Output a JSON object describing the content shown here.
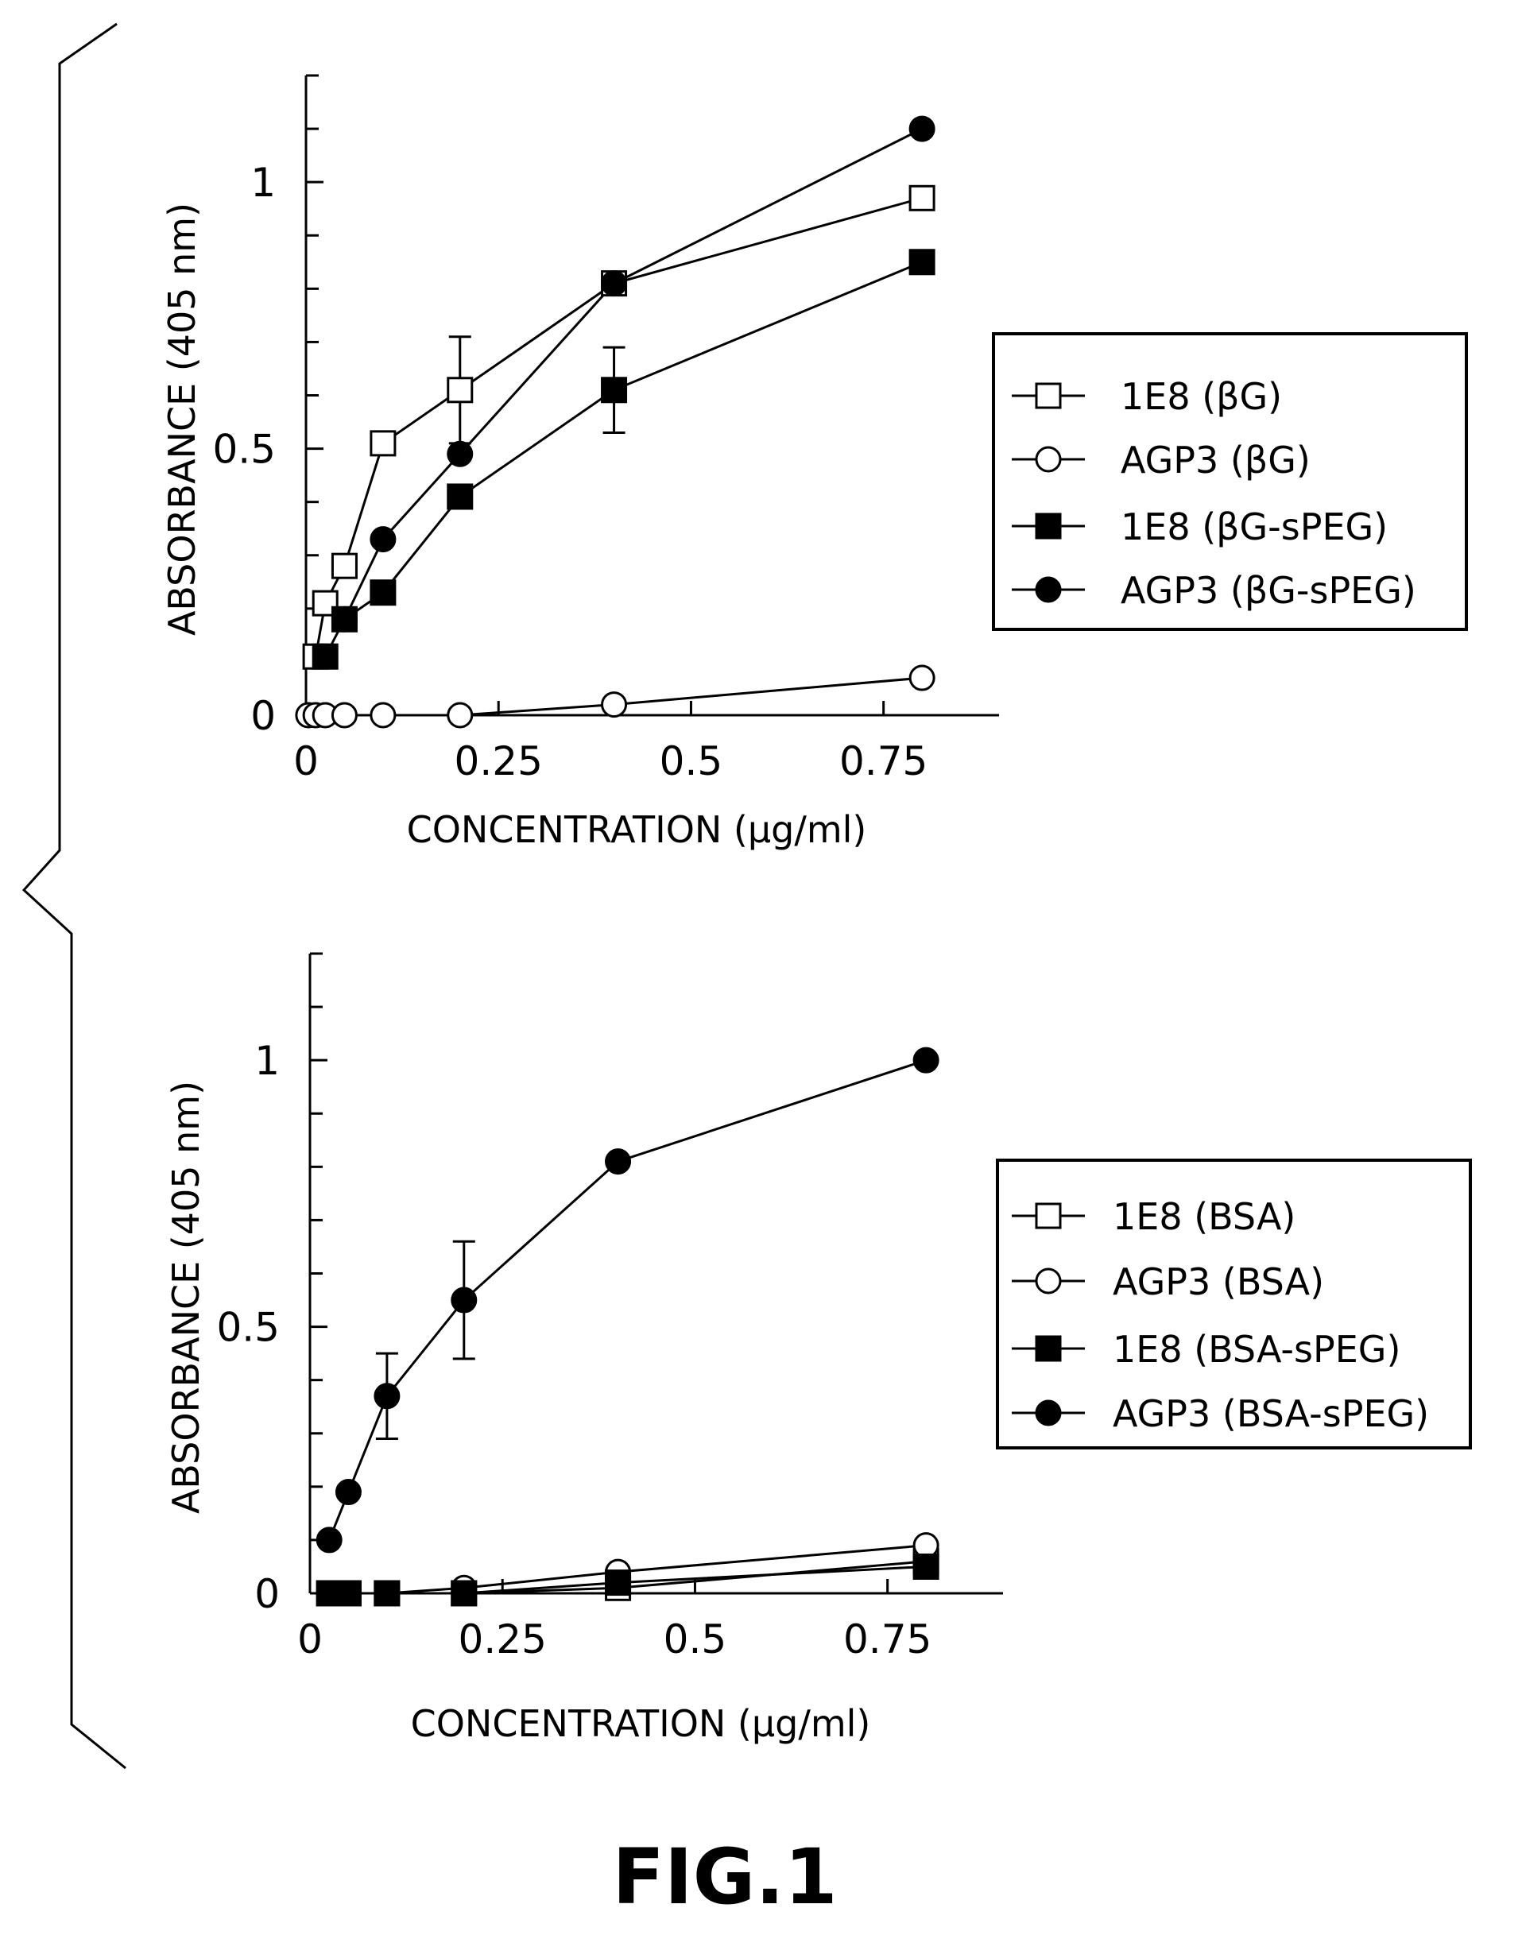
{
  "figure_label": "FIG.1",
  "chart_data": [
    {
      "type": "line",
      "xlabel": "CONCENTRATION (μg/ml)",
      "ylabel": "ABSORBANCE (405 nm)",
      "xlim": [
        0,
        0.9
      ],
      "ylim": [
        0,
        1.2
      ],
      "x_ticks": [
        0,
        0.25,
        0.5,
        0.75
      ],
      "x_tick_labels": [
        "0",
        "0.25",
        "0.5",
        "0.75"
      ],
      "y_ticks": [
        0,
        0.5,
        1
      ],
      "y_tick_labels": [
        "0",
        "0.5",
        "1"
      ],
      "legend_position": "right",
      "series": [
        {
          "name": "1E8 (βG)",
          "marker": "square-open",
          "x": [
            0.0125,
            0.025,
            0.05,
            0.1,
            0.2,
            0.4,
            0.8
          ],
          "y": [
            0.11,
            0.21,
            0.28,
            0.51,
            0.61,
            0.81,
            0.97
          ],
          "errors": [
            null,
            null,
            null,
            null,
            0.1,
            null,
            null
          ]
        },
        {
          "name": "AGP3 (βG)",
          "marker": "circle-open",
          "x": [
            0.003,
            0.0125,
            0.025,
            0.05,
            0.1,
            0.2,
            0.4,
            0.8
          ],
          "y": [
            0.0,
            0.0,
            0.0,
            0.0,
            0.0,
            0.0,
            0.02,
            0.07
          ],
          "errors": [
            null,
            null,
            null,
            null,
            null,
            null,
            null,
            null
          ]
        },
        {
          "name": "1E8 (βG-sPEG)",
          "marker": "square-filled",
          "x": [
            0.025,
            0.05,
            0.1,
            0.2,
            0.4,
            0.8
          ],
          "y": [
            0.11,
            0.18,
            0.23,
            0.41,
            0.61,
            0.85
          ],
          "errors": [
            null,
            null,
            null,
            null,
            0.08,
            null
          ]
        },
        {
          "name": "AGP3 (βG-sPEG)",
          "marker": "circle-filled",
          "x": [
            0.05,
            0.1,
            0.2,
            0.4,
            0.8
          ],
          "y": [
            0.18,
            0.33,
            0.49,
            0.81,
            1.1
          ],
          "errors": [
            null,
            null,
            null,
            null,
            null
          ]
        }
      ]
    },
    {
      "type": "line",
      "xlabel": "CONCENTRATION (μg/ml)",
      "ylabel": "ABSORBANCE (405 nm)",
      "xlim": [
        0,
        0.9
      ],
      "ylim": [
        0,
        1.2
      ],
      "x_ticks": [
        0,
        0.25,
        0.5,
        0.75
      ],
      "x_tick_labels": [
        "0",
        "0.25",
        "0.5",
        "0.75"
      ],
      "y_ticks": [
        0,
        0.5,
        1
      ],
      "y_tick_labels": [
        "0",
        "0.5",
        "1"
      ],
      "legend_position": "right",
      "series": [
        {
          "name": "1E8 (BSA)",
          "marker": "square-open",
          "x": [
            0.025,
            0.05,
            0.1,
            0.2,
            0.4,
            0.8
          ],
          "y": [
            0.0,
            0.0,
            0.0,
            0.0,
            0.01,
            0.06
          ],
          "errors": [
            null,
            null,
            null,
            null,
            null,
            null
          ]
        },
        {
          "name": "AGP3 (BSA)",
          "marker": "circle-open",
          "x": [
            0.025,
            0.05,
            0.1,
            0.2,
            0.4,
            0.8
          ],
          "y": [
            0.0,
            0.0,
            0.0,
            0.01,
            0.04,
            0.09
          ],
          "errors": [
            null,
            null,
            null,
            null,
            null,
            null
          ]
        },
        {
          "name": "1E8 (BSA-sPEG)",
          "marker": "square-filled",
          "x": [
            0.025,
            0.05,
            0.1,
            0.2,
            0.4,
            0.8
          ],
          "y": [
            0.0,
            0.0,
            0.0,
            0.0,
            0.02,
            0.05
          ],
          "errors": [
            null,
            null,
            null,
            null,
            null,
            null
          ]
        },
        {
          "name": "AGP3 (BSA-sPEG)",
          "marker": "circle-filled",
          "x": [
            0.025,
            0.05,
            0.1,
            0.2,
            0.4,
            0.8
          ],
          "y": [
            0.1,
            0.19,
            0.37,
            0.55,
            0.81,
            1.0
          ],
          "errors": [
            null,
            null,
            0.08,
            0.11,
            null,
            null
          ]
        }
      ]
    }
  ]
}
